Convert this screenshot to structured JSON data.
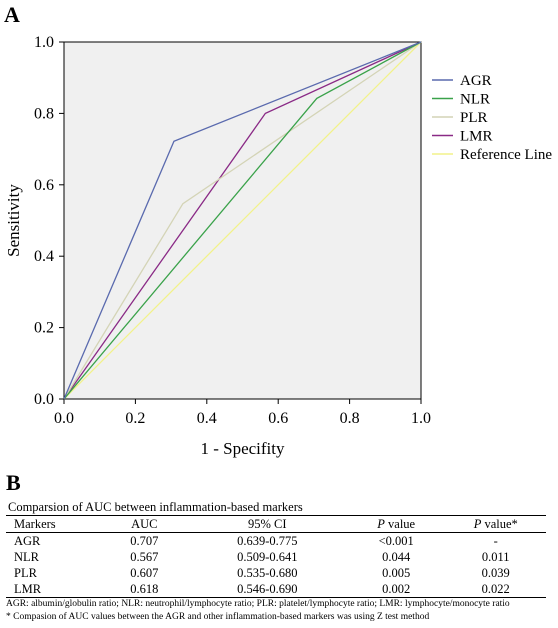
{
  "panel_a_label": "A",
  "panel_b_label": "B",
  "chart_data": {
    "type": "line",
    "xlabel": "1 - Specifity",
    "ylabel": "Sensitivity",
    "xlim": [
      0.0,
      1.0
    ],
    "ylim": [
      0.0,
      1.0
    ],
    "xticks": [
      "0.0",
      "0.2",
      "0.4",
      "0.6",
      "0.8",
      "1.0"
    ],
    "yticks": [
      "0.0",
      "0.2",
      "0.4",
      "0.6",
      "0.8",
      "1.0"
    ],
    "grid": false,
    "legend_position": "right",
    "plot_background": "#f0f0f0",
    "series": [
      {
        "name": "AGR",
        "color": "#5a6aae",
        "x": [
          0.0,
          0.308,
          1.0
        ],
        "y": [
          0.0,
          0.722,
          1.0
        ]
      },
      {
        "name": "NLR",
        "color": "#3aa24a",
        "x": [
          0.0,
          0.708,
          1.0
        ],
        "y": [
          0.0,
          0.842,
          1.0
        ]
      },
      {
        "name": "PLR",
        "color": "#d4d4b6",
        "x": [
          0.0,
          0.333,
          1.0
        ],
        "y": [
          0.0,
          0.547,
          1.0
        ]
      },
      {
        "name": "LMR",
        "color": "#8a2a86",
        "x": [
          0.0,
          0.564,
          1.0
        ],
        "y": [
          0.0,
          0.8,
          1.0
        ]
      },
      {
        "name": "Reference Line",
        "color": "#f2f28a",
        "x": [
          0.0,
          1.0
        ],
        "y": [
          0.0,
          1.0
        ]
      }
    ]
  },
  "table": {
    "caption": "Comparsion of AUC between inflammation-based markers",
    "headers": {
      "markers": "Markers",
      "auc": "AUC",
      "ci": "95% CI",
      "p_italic": "P",
      "p_rest": " value",
      "p2_italic": "P",
      "p2_rest": " value*"
    },
    "rows": [
      {
        "marker": "AGR",
        "auc": "0.707",
        "ci": "0.639-0.775",
        "p": "<0.001",
        "p2": "-"
      },
      {
        "marker": "NLR",
        "auc": "0.567",
        "ci": "0.509-0.641",
        "p": "0.044",
        "p2": "0.011"
      },
      {
        "marker": "PLR",
        "auc": "0.607",
        "ci": "0.535-0.680",
        "p": "0.005",
        "p2": "0.039"
      },
      {
        "marker": "LMR",
        "auc": "0.618",
        "ci": "0.546-0.690",
        "p": "0.002",
        "p2": "0.022"
      }
    ],
    "footnote1": "AGR: albumin/globulin ratio; NLR: neutrophil/lymphocyte ratio; PLR: platelet/lymphocyte ratio; LMR: lymphocyte/monocyte ratio",
    "footnote2": "* Compasion of AUC values between the AGR and other inflammation-based markers was using Z test method"
  }
}
